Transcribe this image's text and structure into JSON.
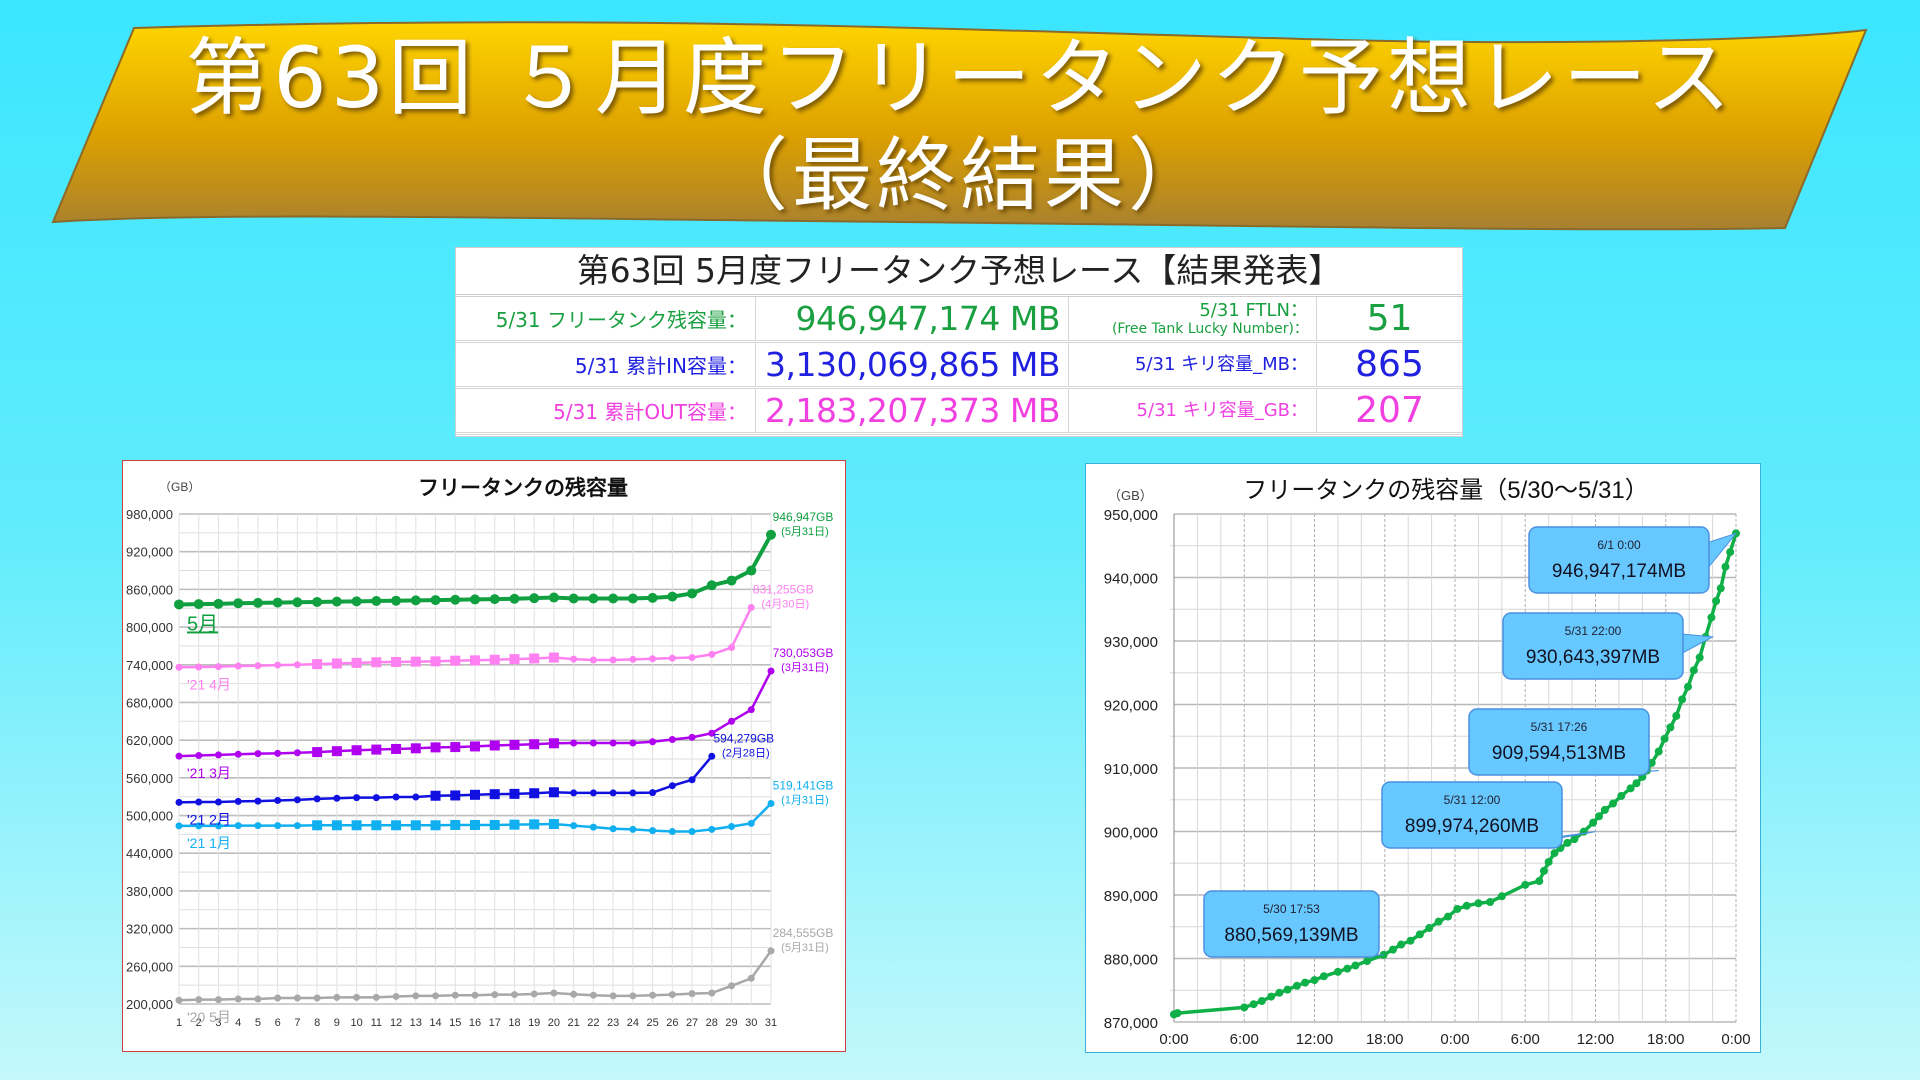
{
  "banner": {
    "line1": "第63回 ５月度フリータンク予想レース",
    "line2": "（最終結果）",
    "colors": {
      "top": "#ffd500",
      "middle": "#dca000",
      "bottom": "#a88030",
      "edge": "#8a6a2a"
    }
  },
  "result_table": {
    "title": "第63回 5月度フリータンク予想レース【結果発表】",
    "rows": [
      {
        "label": "5/31 フリータンク残容量：",
        "value": "946,947,174 MB",
        "label2": "5/31 FTLN：",
        "label2_sub": "(Free Tank Lucky Number)：",
        "value2": "51",
        "color": "#1aa040"
      },
      {
        "label": "5/31 累計IN容量：",
        "value": "3,130,069,865 MB",
        "label2": "5/31 キリ容量_MB：",
        "label2_sub": "",
        "value2": "865",
        "color": "#2020e0"
      },
      {
        "label": "5/31 累計OUT容量：",
        "value": "2,183,207,373 MB",
        "label2": "5/31 キリ容量_GB：",
        "label2_sub": "",
        "value2": "207",
        "color": "#f040e0"
      }
    ]
  },
  "chart_data": [
    {
      "type": "line",
      "title": "フリータンクの残容量",
      "ylabel": "（GB）",
      "xlabel": "",
      "ylim": [
        200000,
        980000
      ],
      "yticks": [
        200000,
        260000,
        320000,
        380000,
        440000,
        500000,
        560000,
        620000,
        680000,
        740000,
        800000,
        860000,
        920000,
        980000
      ],
      "ytick_labels": [
        "200,000",
        "260,000",
        "320,000",
        "380,000",
        "440,000",
        "500,000",
        "560,000",
        "620,000",
        "680,000",
        "740,000",
        "800,000",
        "860,000",
        "920,000",
        "980,000"
      ],
      "x": [
        1,
        2,
        3,
        4,
        5,
        6,
        7,
        8,
        9,
        10,
        11,
        12,
        13,
        14,
        15,
        16,
        17,
        18,
        19,
        20,
        21,
        22,
        23,
        24,
        25,
        26,
        27,
        28,
        29,
        30,
        31
      ],
      "grid": true,
      "legend": "inline-labels",
      "series": [
        {
          "name": "5月",
          "color": "#10a040",
          "marker": "circle-large",
          "values": [
            836000,
            836500,
            837000,
            838000,
            838500,
            839000,
            839500,
            840000,
            840500,
            841000,
            841500,
            842000,
            842500,
            843000,
            843500,
            844000,
            844500,
            845000,
            846000,
            847000,
            845500,
            845500,
            845500,
            845500,
            846500,
            848500,
            853500,
            866500,
            874000,
            890000,
            946947
          ],
          "end_label": "946,947GB",
          "end_sub": "(5月31日)",
          "series_label": "5月"
        },
        {
          "name": "'21 4月",
          "color": "#ff80f0",
          "marker": "square-mid",
          "values": [
            736000,
            736500,
            737000,
            738000,
            738500,
            739500,
            740000,
            741000,
            742000,
            743000,
            744000,
            744500,
            745000,
            745500,
            746500,
            747000,
            748000,
            749000,
            750000,
            751500,
            749000,
            747500,
            747500,
            748500,
            749500,
            750500,
            751500,
            756500,
            767500,
            831255,
            null
          ],
          "end_label": "831,255GB",
          "end_sub": "(4月30日)",
          "series_label": "'21 4月"
        },
        {
          "name": "'21 3月",
          "color": "#b000f0",
          "marker": "square-mid",
          "values": [
            594500,
            595500,
            596500,
            597500,
            598500,
            599000,
            600000,
            601000,
            602500,
            604000,
            605000,
            606000,
            607000,
            608500,
            609000,
            610000,
            611500,
            612500,
            613500,
            615000,
            615500,
            615500,
            615500,
            615500,
            617500,
            621000,
            624500,
            631000,
            650000,
            668500,
            730053
          ],
          "end_label": "730,053GB",
          "end_sub": "(3月31日)",
          "series_label": "'21 3月"
        },
        {
          "name": "'21 2月",
          "color": "#1010e0",
          "marker": "square-small",
          "values": [
            521000,
            521500,
            521500,
            522500,
            523000,
            524000,
            525000,
            526500,
            527500,
            528500,
            528500,
            529500,
            529500,
            531500,
            532000,
            533000,
            534000,
            534500,
            535500,
            537000,
            536000,
            536000,
            536000,
            536000,
            536500,
            547500,
            557000,
            594279,
            null,
            null,
            null
          ],
          "end_label": "594,279GB",
          "end_sub": "(2月28日)",
          "series_label": "'21 2月"
        },
        {
          "name": "'21 1月",
          "color": "#10b0f0",
          "marker": "square-mid",
          "values": [
            483500,
            483500,
            483500,
            484000,
            484000,
            484000,
            484000,
            484500,
            484500,
            484500,
            484500,
            484500,
            484500,
            484500,
            485000,
            485000,
            485000,
            485500,
            486000,
            486500,
            484000,
            481500,
            479000,
            478000,
            476000,
            474500,
            474500,
            478000,
            482500,
            487500,
            519141
          ],
          "end_label": "519,141GB",
          "end_sub": "(1月31日)",
          "series_label": "'21 1月"
        },
        {
          "name": "'20 5月",
          "color": "#a8a8a8",
          "marker": "circle-small",
          "values": [
            206000,
            207000,
            207000,
            208000,
            208000,
            209500,
            209500,
            209500,
            210500,
            210500,
            210500,
            212000,
            213000,
            213000,
            214000,
            214000,
            215000,
            215000,
            216000,
            217500,
            215500,
            214000,
            213000,
            213000,
            214000,
            215000,
            216500,
            217500,
            229000,
            241000,
            284555
          ],
          "end_label": "284,555GB",
          "end_sub": "(5月31日)",
          "series_label": "'20 5月"
        }
      ]
    },
    {
      "type": "line",
      "title": "フリータンクの残容量（5/30～5/31）",
      "ylabel": "（GB）",
      "xlabel": "",
      "ylim": [
        870000,
        950000
      ],
      "yticks": [
        870000,
        880000,
        890000,
        900000,
        910000,
        920000,
        930000,
        940000,
        950000
      ],
      "ytick_labels": [
        "870,000",
        "880,000",
        "890,000",
        "900,000",
        "910,000",
        "920,000",
        "930,000",
        "940,000",
        "950,000"
      ],
      "xlim_hours": [
        0,
        48
      ],
      "xticks_hours": [
        0,
        6,
        12,
        18,
        24,
        30,
        36,
        42,
        48
      ],
      "xtick_labels": [
        "0:00",
        "6:00",
        "12:00",
        "18:00",
        "0:00",
        "6:00",
        "12:00",
        "18:00",
        "0:00"
      ],
      "grid": true,
      "series": [
        {
          "name": "残容量",
          "color": "#10b048",
          "x_hours": [
            0,
            0.3,
            6,
            6.8,
            7.5,
            8.3,
            9,
            9.7,
            10.5,
            11.2,
            12,
            12.8,
            14,
            14.8,
            15.5,
            16.5,
            17.9,
            18.7,
            19.4,
            20.2,
            21,
            21.8,
            22.6,
            23.4,
            24.2,
            25,
            26,
            27,
            28,
            30,
            31.2,
            31.6,
            32,
            32.5,
            33,
            33.6,
            34.2,
            35,
            35.8,
            36.3,
            36.8,
            37.5,
            38.2,
            39,
            39.5,
            40,
            40.4,
            40.8,
            41.4,
            41.9,
            42.4,
            42.9,
            43.4,
            43.9,
            44.4,
            44.9,
            45.4,
            45.9,
            46.3,
            46.7,
            47.1,
            47.5,
            48
          ],
          "values": [
            871200,
            871400,
            872300,
            872800,
            873300,
            874000,
            874600,
            875100,
            875700,
            876200,
            876600,
            877200,
            877900,
            878400,
            878900,
            879600,
            880569,
            881400,
            882200,
            882800,
            883800,
            884800,
            885800,
            886600,
            887800,
            888300,
            888700,
            888900,
            889800,
            891600,
            892200,
            893800,
            895200,
            896600,
            897400,
            898200,
            898800,
            899974,
            901400,
            902400,
            903400,
            904400,
            905600,
            906800,
            907600,
            908600,
            909594,
            910800,
            912600,
            914600,
            916400,
            918200,
            920800,
            922800,
            925400,
            927400,
            930643,
            933700,
            936300,
            938300,
            941700,
            944000,
            946947
          ]
        }
      ],
      "annotations": [
        {
          "time": "5/30 17:53",
          "value": "880,569,139MB",
          "x_hours": 17.9,
          "y": 880569
        },
        {
          "time": "5/31 12:00",
          "value": "899,974,260MB",
          "x_hours": 36,
          "y": 899974
        },
        {
          "time": "5/31 17:26",
          "value": "909,594,513MB",
          "x_hours": 41.4,
          "y": 909594
        },
        {
          "time": "5/31 22:00",
          "value": "930,643,397MB",
          "x_hours": 46,
          "y": 930643
        },
        {
          "time": "6/1 0:00",
          "value": "946,947,174MB",
          "x_hours": 48,
          "y": 946947
        }
      ],
      "annotation_color": "#66c8ff"
    }
  ]
}
